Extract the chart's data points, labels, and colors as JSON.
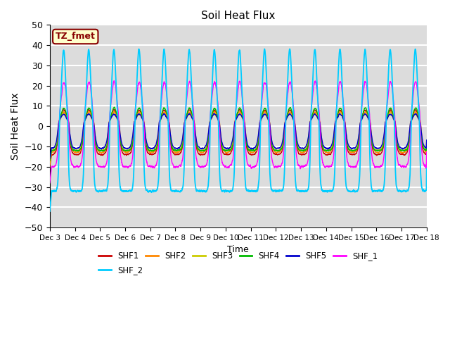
{
  "title": "Soil Heat Flux",
  "ylabel": "Soil Heat Flux",
  "xlabel": "Time",
  "ylim": [
    -50,
    50
  ],
  "xlim_days": [
    3,
    18
  ],
  "bg_color": "#dcdcdc",
  "grid_color": "white",
  "series_colors": {
    "SHF1": "#cc0000",
    "SHF2": "#ff8800",
    "SHF3": "#cccc00",
    "SHF4": "#00bb00",
    "SHF5": "#0000cc",
    "SHF_1": "#ff00ff",
    "SHF_2": "#00ccff"
  },
  "tz_fmet_label": "TZ_fmet",
  "tz_fmet_bg": "#ffffcc",
  "tz_fmet_border": "#880000",
  "num_points": 4000,
  "start_day": 3,
  "end_day": 18
}
